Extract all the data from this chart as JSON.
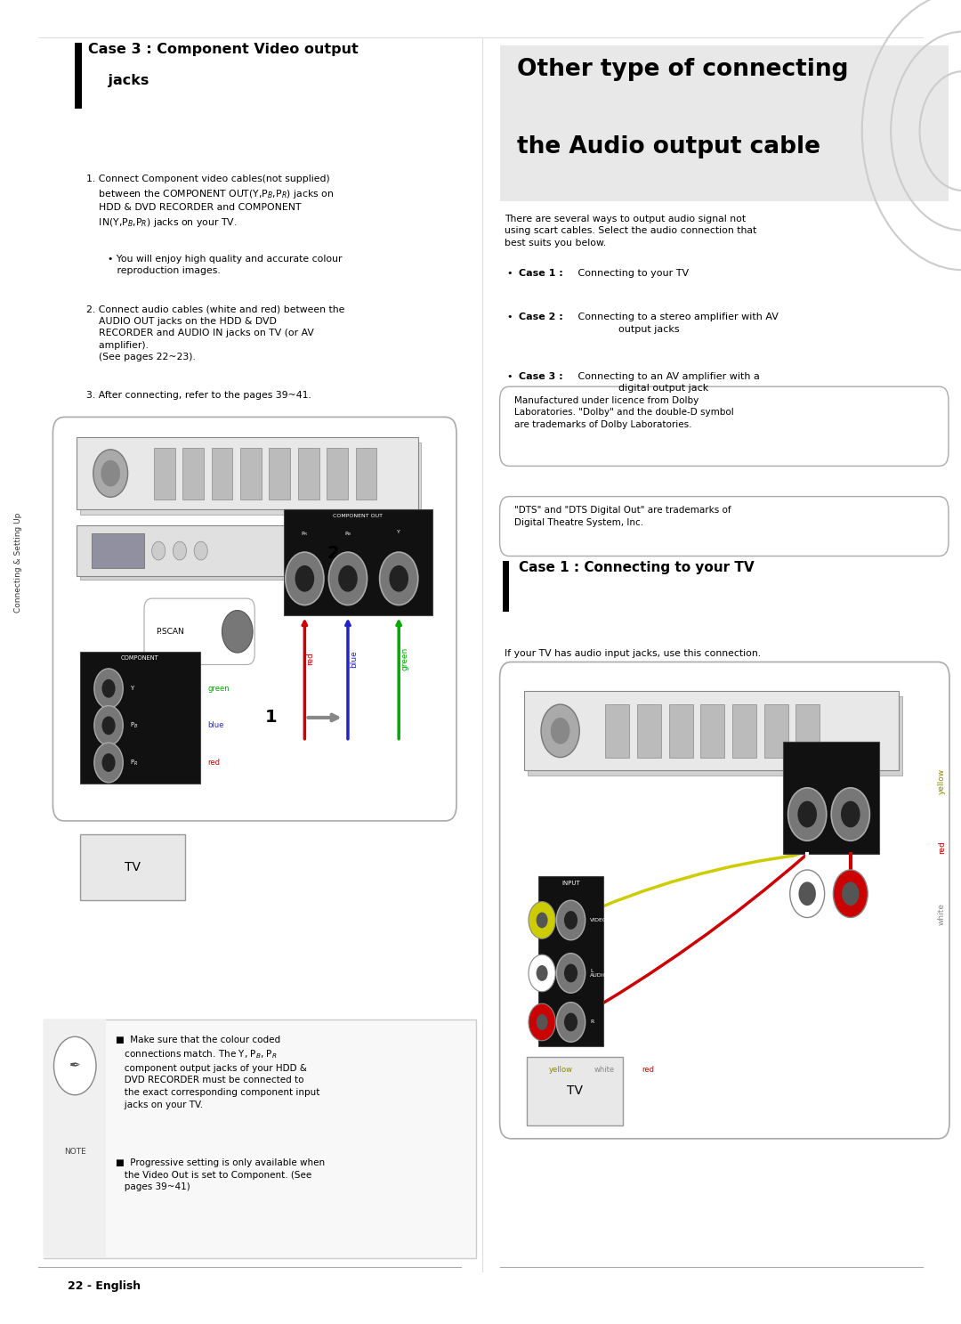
{
  "bg_color": "#ffffff",
  "page_width": 10.8,
  "page_height": 14.87,
  "footer": "22 - English",
  "sidebar_text": "Connecting & Setting Up",
  "left": {
    "case3_title_line1": "Case 3 : Component Video output",
    "case3_title_line2": "    jacks",
    "step1": "1. Connect Component video cables(not supplied)\n    between the COMPONENT OUT(Y,Pʙ,Pʀ) jacks on\n    HDD & DVD RECORDER and COMPONENT\n    IN(Y,Pʙ,Pʀ) jacks on your TV.",
    "bullet1": "• You will enjoy high quality and accurate colour\n   reproduction images.",
    "step2": "2. Connect audio cables (white and red) between the\n    AUDIO OUT jacks on the HDD & DVD\n    RECORDER and AUDIO IN jacks on TV (or AV\n    amplifier).\n    (See pages 22~23).",
    "step3": "3. After connecting, refer to the pages 39~41.",
    "note1": "■  Make sure that the colour coded\n   connections match. The Y, Pʙ, Pʀ\n   component output jacks of your HDD &\n   DVD RECORDER must be connected to\n   the exact corresponding component input\n   jacks on your TV.",
    "note2": "■  Progressive setting is only available when\n   the Video Out is set to Component. (See\n   pages 39~41)"
  },
  "right": {
    "header_line1": "Other type of connecting",
    "header_line2": "the Audio output cable",
    "intro": "There are several ways to output audio signal not\nusing scart cables. Select the audio connection that\nbest suits you below.",
    "case1_label": "Case 1 :",
    "case1_text": " Connecting to your TV",
    "case2_label": "Case 2 :",
    "case2_text": " Connecting to a stereo amplifier with AV\n              output jacks",
    "case3_label": "Case 3 :",
    "case3_text": " Connecting to an AV amplifier with a\n              digital output jack",
    "dolby": "Manufactured under licence from Dolby\nLaboratories. \"Dolby\" and the double-D symbol\nare trademarks of Dolby Laboratories.",
    "dts": "\"DTS\" and \"DTS Digital Out\" are trademarks of\nDigital Theatre System, Inc.",
    "case1_title": "Case 1 : Connecting to your TV",
    "case1_desc": "If your TV has audio input jacks, use this connection."
  }
}
